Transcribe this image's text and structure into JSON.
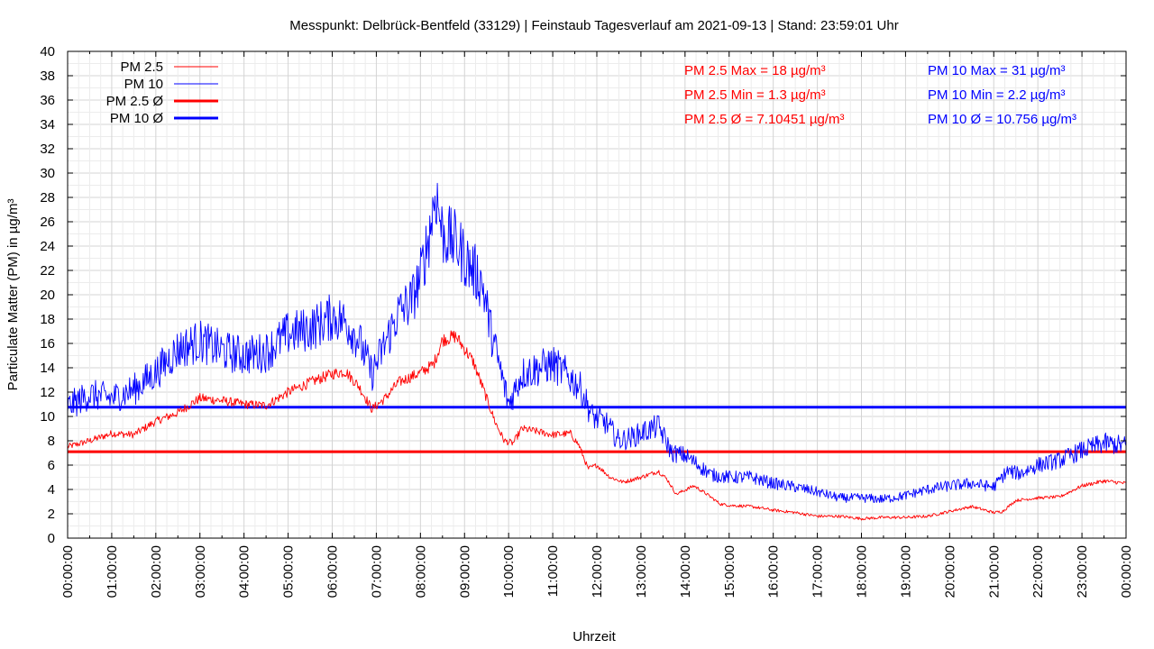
{
  "chart_data": {
    "type": "line",
    "title": "Messpunkt: Delbrück-Bentfeld (33129) | Feinstaub Tagesverlauf am 2021-09-13 | Stand: 23:59:01 Uhr",
    "xlabel": "Uhrzeit",
    "ylabel": "Particulate Matter (PM) in µg/m³",
    "ylim": [
      0,
      40
    ],
    "yticks": [
      "0",
      "2",
      "4",
      "6",
      "8",
      "10",
      "12",
      "14",
      "16",
      "18",
      "20",
      "22",
      "24",
      "26",
      "28",
      "30",
      "32",
      "34",
      "36",
      "38",
      "40"
    ],
    "xlim_hours": [
      0,
      24
    ],
    "xticks": [
      "00:00:00",
      "01:00:00",
      "02:00:00",
      "03:00:00",
      "04:00:00",
      "05:00:00",
      "06:00:00",
      "07:00:00",
      "08:00:00",
      "09:00:00",
      "10:00:00",
      "11:00:00",
      "12:00:00",
      "13:00:00",
      "14:00:00",
      "15:00:00",
      "16:00:00",
      "17:00:00",
      "18:00:00",
      "19:00:00",
      "20:00:00",
      "21:00:00",
      "22:00:00",
      "23:00:00",
      "00:00:00"
    ],
    "grid": true,
    "legend_position": "top-left",
    "legend": [
      {
        "label": "PM 2.5",
        "color": "#ff0000",
        "style": "thin"
      },
      {
        "label": "PM 10",
        "color": "#0000ff",
        "style": "thin"
      },
      {
        "label": "PM 2.5 Ø",
        "color": "#ff0000",
        "style": "thick"
      },
      {
        "label": "PM 10 Ø",
        "color": "#0000ff",
        "style": "thick"
      }
    ],
    "stats_pm25": [
      "PM 2.5 Max = 18 µg/m³",
      "PM 2.5 Min = 1.3 µg/m³",
      "PM 2.5 Ø = 7.10451 µg/m³"
    ],
    "stats_pm10": [
      "PM 10 Max = 31 µg/m³",
      "PM 10 Min = 2.2 µg/m³",
      "PM 10 Ø = 10.756 µg/m³"
    ],
    "series": [
      {
        "name": "PM 2.5",
        "color": "#ff0000",
        "x_hours": [
          0,
          0.5,
          1,
          1.5,
          2,
          2.5,
          3,
          3.5,
          4,
          4.5,
          5,
          5.5,
          6,
          6.3,
          6.6,
          6.9,
          7.2,
          7.5,
          8,
          8.3,
          8.5,
          8.8,
          9.2,
          9.5,
          9.7,
          9.9,
          10.1,
          10.3,
          10.6,
          11,
          11.4,
          11.6,
          11.8,
          12,
          12.3,
          12.6,
          13,
          13.4,
          13.6,
          13.8,
          14.2,
          14.5,
          14.8,
          15,
          15.5,
          16,
          16.5,
          17,
          17.5,
          18,
          18.5,
          19,
          19.5,
          20,
          20.5,
          21,
          21.2,
          21.5,
          22,
          22.5,
          23,
          23.5,
          24
        ],
        "y": [
          7.5,
          8,
          8.6,
          8.5,
          9.6,
          10.3,
          11.5,
          11.3,
          11,
          10.9,
          12,
          12.8,
          13.5,
          13.7,
          12.5,
          10.6,
          11.5,
          12.8,
          13.6,
          14.3,
          16.3,
          16.6,
          14.5,
          11.5,
          9.5,
          8,
          7.8,
          9,
          8.8,
          8.5,
          8.6,
          7.6,
          5.7,
          6,
          5,
          4.6,
          5,
          5.5,
          4.8,
          3.6,
          4.3,
          3.6,
          2.8,
          2.7,
          2.6,
          2.3,
          2.1,
          1.8,
          1.8,
          1.6,
          1.7,
          1.7,
          1.8,
          2.2,
          2.6,
          2.1,
          2.2,
          3.1,
          3.3,
          3.4,
          4.3,
          4.7,
          4.5
        ]
      },
      {
        "name": "PM 10",
        "color": "#0000ff",
        "x_hours": [
          0,
          0.5,
          1,
          1.5,
          2,
          2.5,
          3,
          3.5,
          4,
          4.5,
          5,
          5.5,
          6,
          6.3,
          6.6,
          6.9,
          7.2,
          7.5,
          7.8,
          8,
          8.2,
          8.35,
          8.5,
          8.8,
          9.1,
          9.4,
          9.6,
          9.8,
          10,
          10.3,
          10.7,
          11,
          11.3,
          11.6,
          11.9,
          12.2,
          12.5,
          12.8,
          13.1,
          13.4,
          13.7,
          14,
          14.3,
          14.6,
          15,
          15.5,
          16,
          16.5,
          17,
          17.5,
          18,
          18.5,
          19,
          19.5,
          20,
          20.5,
          21,
          21.3,
          21.6,
          22,
          22.5,
          23,
          23.5,
          24
        ],
        "y": [
          10.8,
          11.8,
          11.5,
          12.2,
          13.6,
          15.5,
          16.2,
          15.4,
          15,
          15.3,
          16.8,
          17.2,
          18.2,
          17.8,
          16.3,
          13.5,
          16,
          18.5,
          19.5,
          21.5,
          25,
          28.5,
          25,
          24.3,
          22.5,
          21,
          17,
          14,
          11,
          13.5,
          14,
          14.3,
          13.5,
          12.5,
          10,
          9.5,
          8,
          8.3,
          8.8,
          9.2,
          7,
          6.8,
          6,
          5.2,
          5,
          5,
          4.5,
          4.2,
          3.8,
          3.3,
          3.3,
          3.2,
          3.5,
          4,
          4.3,
          4.5,
          4.2,
          5.5,
          5.3,
          6,
          6.4,
          7.2,
          7.8,
          7.6
        ]
      },
      {
        "name": "PM 2.5 Ø",
        "color": "#ff0000",
        "value": 7.10451
      },
      {
        "name": "PM 10 Ø",
        "color": "#0000ff",
        "value": 10.756
      }
    ]
  }
}
